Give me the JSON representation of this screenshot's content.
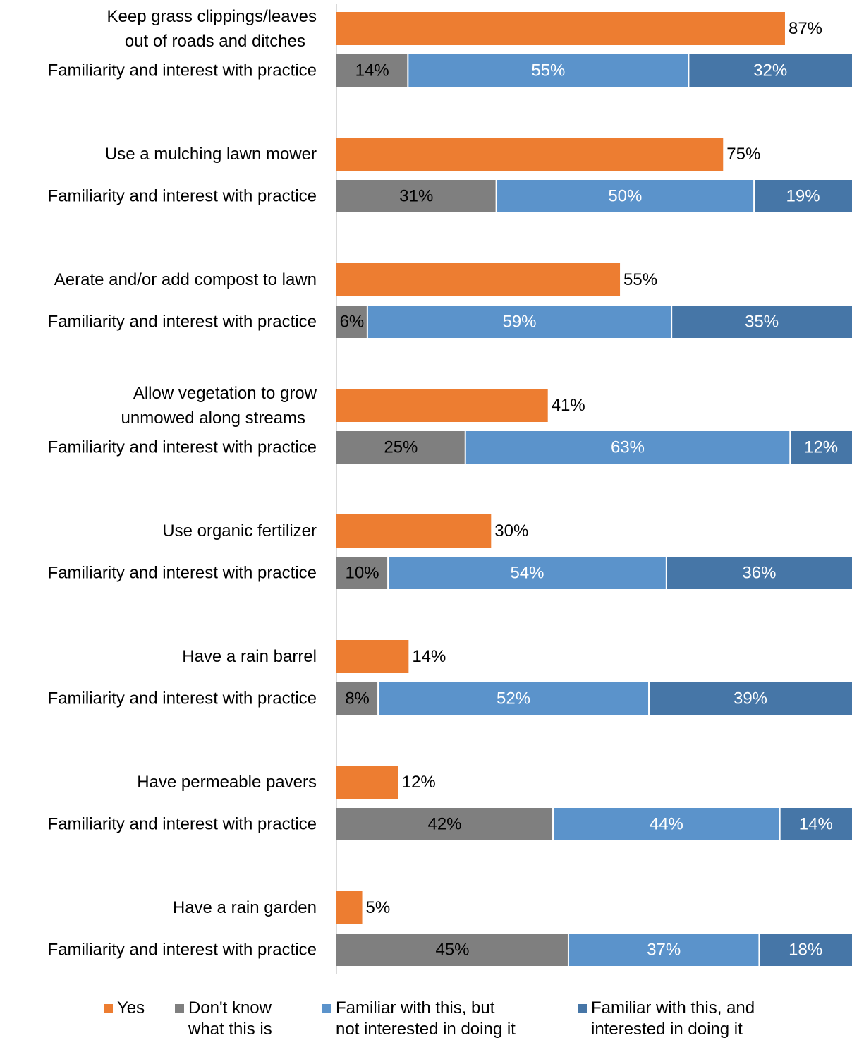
{
  "colors": {
    "yes": "#ED7D31",
    "dont_know": "#7F7F7F",
    "familiar_not_interested": "#5B93CB",
    "familiar_interested": "#4676A7",
    "axis": "#D9D9D9"
  },
  "chart_data": {
    "type": "bar",
    "orientation": "horizontal",
    "stacked_rows": true,
    "value_unit": "%",
    "xlim": [
      0,
      100
    ],
    "grid": false,
    "legend_position": "bottom",
    "groups": [
      {
        "practice": "Keep grass clippings/leaves\nout of roads and ditches",
        "yes_value": 87,
        "yes_label": "87%",
        "familiarity_label": "Familiarity and interest with practice",
        "familiarity": [
          14,
          55,
          32
        ],
        "familiarity_labels": [
          "14%",
          "55%",
          "32%"
        ]
      },
      {
        "practice": "Use a mulching lawn mower",
        "yes_value": 75,
        "yes_label": "75%",
        "familiarity_label": "Familiarity and interest with practice",
        "familiarity": [
          31,
          50,
          19
        ],
        "familiarity_labels": [
          "31%",
          "50%",
          "19%"
        ]
      },
      {
        "practice": "Aerate and/or add compost to lawn",
        "yes_value": 55,
        "yes_label": "55%",
        "familiarity_label": "Familiarity and interest with practice",
        "familiarity": [
          6,
          59,
          35
        ],
        "familiarity_labels": [
          "6%",
          "59%",
          "35%"
        ]
      },
      {
        "practice": "Allow vegetation to grow\nunmowed along streams",
        "yes_value": 41,
        "yes_label": "41%",
        "familiarity_label": "Familiarity and interest with practice",
        "familiarity": [
          25,
          63,
          12
        ],
        "familiarity_labels": [
          "25%",
          "63%",
          "12%"
        ]
      },
      {
        "practice": "Use organic fertilizer",
        "yes_value": 30,
        "yes_label": "30%",
        "familiarity_label": "Familiarity and interest with practice",
        "familiarity": [
          10,
          54,
          36
        ],
        "familiarity_labels": [
          "10%",
          "54%",
          "36%"
        ]
      },
      {
        "practice": "Have a rain barrel",
        "yes_value": 14,
        "yes_label": "14%",
        "familiarity_label": "Familiarity and interest with practice",
        "familiarity": [
          8,
          52,
          39
        ],
        "familiarity_labels": [
          "8%",
          "52%",
          "39%"
        ]
      },
      {
        "practice": "Have permeable pavers",
        "yes_value": 12,
        "yes_label": "12%",
        "familiarity_label": "Familiarity and interest with practice",
        "familiarity": [
          42,
          44,
          14
        ],
        "familiarity_labels": [
          "42%",
          "44%",
          "14%"
        ]
      },
      {
        "practice": "Have a rain garden",
        "yes_value": 5,
        "yes_label": "5%",
        "familiarity_label": "Familiarity and interest with practice",
        "familiarity": [
          45,
          37,
          18
        ],
        "familiarity_labels": [
          "45%",
          "37%",
          "18%"
        ]
      }
    ]
  },
  "legend": [
    {
      "key": "yes",
      "label": "Yes"
    },
    {
      "key": "dont_know",
      "label": "Don't know\nwhat this is"
    },
    {
      "key": "familiar_not_interested",
      "label": "Familiar with this, but\nnot interested in doing it"
    },
    {
      "key": "familiar_interested",
      "label": "Familiar with this, and\ninterested in doing it"
    }
  ]
}
